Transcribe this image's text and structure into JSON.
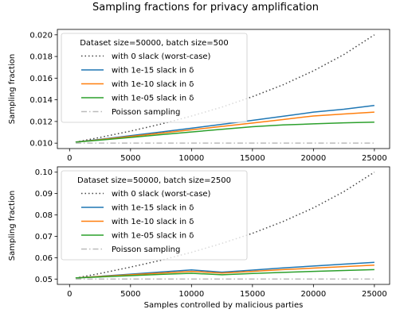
{
  "figure": {
    "suptitle": "Sampling fractions for privacy amplification"
  },
  "chart_data": [
    {
      "type": "line",
      "legend_title": "Dataset size=50000, batch size=500",
      "legend_placement": "upper left",
      "xlabel": "",
      "ylabel": "Sampling fraction",
      "xlim": [
        -1000,
        26250
      ],
      "ylim": [
        0.0095,
        0.0205
      ],
      "xticks": [
        0,
        5000,
        10000,
        15000,
        20000,
        25000
      ],
      "xtick_labels": [
        "0",
        "5000",
        "10000",
        "15000",
        "20000",
        "25000"
      ],
      "yticks": [
        0.01,
        0.012,
        0.014,
        0.016,
        0.018,
        0.02
      ],
      "ytick_labels": [
        "0.010",
        "0.012",
        "0.014",
        "0.016",
        "0.018",
        "0.020"
      ],
      "grid": false,
      "x": [
        500,
        2500,
        5000,
        7500,
        10000,
        12500,
        15000,
        17500,
        20000,
        22500,
        25000
      ],
      "series": [
        {
          "name": "with 0 slack (worst-case)",
          "style": "dotted",
          "color": "#444444",
          "values": [
            0.0101,
            0.01053,
            0.01111,
            0.01176,
            0.0125,
            0.01333,
            0.01429,
            0.01538,
            0.01667,
            0.01818,
            0.02
          ]
        },
        {
          "name": "with 1e-15 slack in δ",
          "style": "solid",
          "color": "#1f77b4",
          "values": [
            0.0101,
            0.01035,
            0.01069,
            0.01103,
            0.01138,
            0.01174,
            0.0121,
            0.01248,
            0.01286,
            0.01313,
            0.01348
          ]
        },
        {
          "name": "with 1e-10 slack in δ",
          "style": "solid",
          "color": "#ff7f0e",
          "values": [
            0.0101,
            0.01032,
            0.01062,
            0.01092,
            0.01123,
            0.01154,
            0.01186,
            0.01218,
            0.01251,
            0.01269,
            0.01286
          ]
        },
        {
          "name": "with 1e-05 slack in δ",
          "style": "solid",
          "color": "#2ca02c",
          "values": [
            0.0101,
            0.01028,
            0.01053,
            0.01078,
            0.01103,
            0.01128,
            0.01152,
            0.01168,
            0.01178,
            0.01187,
            0.01194
          ]
        },
        {
          "name": "Poisson sampling",
          "style": "dashdot",
          "color": "#bbbbbb",
          "values": [
            0.01,
            0.01,
            0.01,
            0.01,
            0.01,
            0.01,
            0.01,
            0.01,
            0.01,
            0.01,
            0.01
          ]
        }
      ]
    },
    {
      "type": "line",
      "legend_title": "Dataset size=50000, batch size=2500",
      "legend_placement": "upper left",
      "xlabel": "Samples controlled by malicious parties",
      "ylabel": "Sampling fraction",
      "xlim": [
        -1000,
        26250
      ],
      "ylim": [
        0.0475,
        0.1025
      ],
      "xticks": [
        0,
        5000,
        10000,
        15000,
        20000,
        25000
      ],
      "xtick_labels": [
        "0",
        "5000",
        "10000",
        "15000",
        "20000",
        "25000"
      ],
      "yticks": [
        0.05,
        0.06,
        0.07,
        0.08,
        0.09,
        0.1
      ],
      "ytick_labels": [
        "0.05",
        "0.06",
        "0.07",
        "0.08",
        "0.09",
        "0.10"
      ],
      "grid": false,
      "x": [
        500,
        2500,
        5000,
        7500,
        10000,
        12500,
        15000,
        17500,
        20000,
        22500,
        25000
      ],
      "series": [
        {
          "name": "with 0 slack (worst-case)",
          "style": "dotted",
          "color": "#444444",
          "values": [
            0.0505,
            0.0526,
            0.0556,
            0.0588,
            0.0625,
            0.0667,
            0.0714,
            0.0769,
            0.0833,
            0.0909,
            0.1
          ]
        },
        {
          "name": "with 1e-15 slack in δ",
          "style": "solid",
          "color": "#1f77b4",
          "values": [
            0.0505,
            0.0513,
            0.0523,
            0.0533,
            0.0543,
            0.0532,
            0.0542,
            0.0552,
            0.0561,
            0.057,
            0.0578
          ]
        },
        {
          "name": "with 1e-10 slack in δ",
          "style": "solid",
          "color": "#ff7f0e",
          "values": [
            0.0505,
            0.0512,
            0.052,
            0.0528,
            0.0536,
            0.0528,
            0.0536,
            0.0544,
            0.0551,
            0.0558,
            0.0565
          ]
        },
        {
          "name": "with 1e-05 slack in δ",
          "style": "solid",
          "color": "#2ca02c",
          "values": [
            0.0505,
            0.051,
            0.0516,
            0.0522,
            0.0527,
            0.052,
            0.0526,
            0.0531,
            0.0536,
            0.054,
            0.0544
          ]
        },
        {
          "name": "Poisson sampling",
          "style": "dashdot",
          "color": "#bbbbbb",
          "values": [
            0.05,
            0.05,
            0.05,
            0.05,
            0.05,
            0.05,
            0.05,
            0.05,
            0.05,
            0.05,
            0.05
          ]
        }
      ]
    }
  ]
}
